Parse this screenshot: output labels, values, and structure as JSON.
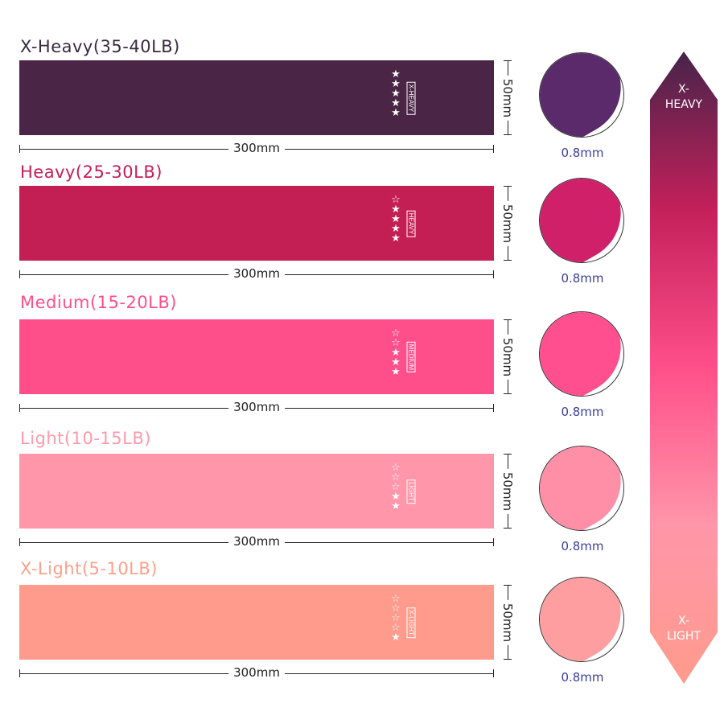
{
  "bands": [
    {
      "title": "X-Heavy(35-40LB)",
      "label": "X-HEAVY",
      "stars_filled": 5,
      "stars_total": 5,
      "length": "300mm",
      "width": "50mm",
      "thickness": "0.8mm",
      "color": "#4a2545",
      "title_color": "#3a2a40",
      "circle_color": "#5a2a6a"
    },
    {
      "title": "Heavy(25-30LB)",
      "label": "HEAVY",
      "stars_filled": 4,
      "stars_total": 5,
      "length": "300mm",
      "width": "50mm",
      "thickness": "0.8mm",
      "color": "#c41f55",
      "title_color": "#c41f55",
      "circle_color": "#d0206a"
    },
    {
      "title": "Medium(15-20LB)",
      "label": "MEDIUM",
      "stars_filled": 3,
      "stars_total": 5,
      "length": "300mm",
      "width": "50mm",
      "thickness": "0.8mm",
      "color": "#ff4f8a",
      "title_color": "#ff4f8a",
      "circle_color": "#ff4f8f"
    },
    {
      "title": "Light(10-15LB)",
      "label": "LIGHT",
      "stars_filled": 2,
      "stars_total": 5,
      "length": "300mm",
      "width": "50mm",
      "thickness": "0.8mm",
      "color": "#ff96a9",
      "title_color": "#ff9aaa",
      "circle_color": "#ff8fa6"
    },
    {
      "title": "X-Light(5-10LB)",
      "label": "X-LIGHT",
      "stars_filled": 1,
      "stars_total": 5,
      "length": "300mm",
      "width": "50mm",
      "thickness": "0.8mm",
      "color": "#ff9b8c",
      "title_color": "#ff9f8a",
      "circle_color": "#ff9ea0"
    }
  ],
  "scale": {
    "top_line1": "X-",
    "top_line2": "HEAVY",
    "bottom_line1": "X-",
    "bottom_line2": "LIGHT",
    "gradient": [
      "#46244a",
      "#c4205a",
      "#ff4f8a",
      "#ff96a9",
      "#ff9b8c"
    ]
  }
}
